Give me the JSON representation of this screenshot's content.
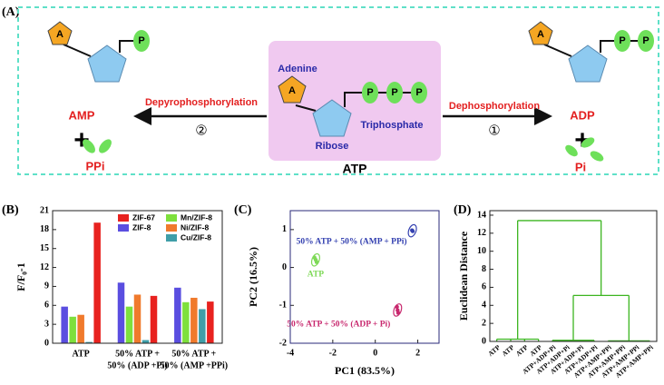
{
  "diagram": {
    "panel_label": "(A)",
    "adenine_symbol": "A",
    "phosphate_symbol": "P",
    "plus": "+",
    "amp": "AMP",
    "ppi": "PPi",
    "left_reaction": "Depyrophosphorylation",
    "left_step": "②",
    "adenine": "Adenine",
    "ribose": "Ribose",
    "triphosphate": "Triphosphate",
    "atp": "ATP",
    "right_reaction": "Dephosphorylation",
    "right_step": "①",
    "adp": "ADP",
    "pi": "Pi"
  },
  "chart_data": [
    {
      "type": "bar",
      "panel_label": "(B)",
      "y_label": "F/F₀-1",
      "categories": [
        [
          "ATP"
        ],
        [
          "50% ATP +",
          "50% (ADP +Pi)"
        ],
        [
          "50% ATP +",
          "50% (AMP +PPi)"
        ]
      ],
      "series": [
        {
          "name": "ZIF-8",
          "color": "#5a4ee0",
          "values": [
            5.8,
            9.6,
            8.8
          ]
        },
        {
          "name": "Mn/ZIF-8",
          "color": "#7ee03c",
          "values": [
            4.2,
            5.8,
            6.5
          ]
        },
        {
          "name": "Ni/ZIF-8",
          "color": "#f07a2c",
          "values": [
            4.5,
            7.7,
            7.2
          ]
        },
        {
          "name": "Cu/ZIF-8",
          "color": "#3f9ea8",
          "values": [
            0.2,
            0.5,
            5.4
          ]
        },
        {
          "name": "ZIF-67",
          "color": "#e8221f",
          "values": [
            19.1,
            7.5,
            6.6
          ]
        }
      ],
      "ylim": [
        0,
        21
      ],
      "yticks": [
        0,
        3,
        6,
        9,
        12,
        15,
        18,
        21
      ]
    },
    {
      "type": "scatter",
      "panel_label": "(C)",
      "x_label": "PC1 (83.5%)",
      "y_label": "PC2 (16.5%)",
      "series": [
        {
          "name": "ATP",
          "color": "#7ed957",
          "x": [
            -2.86,
            -2.8,
            -2.76
          ],
          "values": [
            0.26,
            0.2,
            0.14
          ]
        },
        {
          "name": "50% ATP + 50% (AMP + PPi)",
          "color": "#3340b0",
          "x": [
            1.73,
            1.76
          ],
          "values": [
            0.98,
            0.96
          ]
        },
        {
          "name": "50% ATP + 50% (ADP + Pi)",
          "color": "#c8286e",
          "x": [
            1.02,
            1.05,
            1.08
          ],
          "values": [
            -1.04,
            -1.13,
            -1.2
          ]
        }
      ],
      "xlim": [
        -4,
        3
      ],
      "ylim": [
        -2,
        1.5
      ],
      "xticks": [
        -4,
        -2,
        0,
        2
      ],
      "yticks": [
        -2,
        -1,
        0,
        1
      ]
    },
    {
      "type": "dendrogram",
      "panel_label": "(D)",
      "y_label": "Euclidean Distance",
      "color": "#3cb521",
      "categories": [
        "ATP",
        "ATP",
        "ATP",
        "ATP",
        "ATP+ADP+Pi",
        "ATP+ADP+Pi",
        "ATP+ADP+Pi",
        "ATP+ADP+Pi",
        "ATP+AMP+PPi",
        "ATP+AMP+PPi",
        "ATP+AMP+PPi",
        "ATP+AMP+PPi"
      ],
      "cluster_heights": [
        0.25,
        0.12,
        0.06
      ],
      "merge_heights": [
        5.1,
        13.4
      ],
      "ylim": [
        0,
        14.5
      ],
      "yticks": [
        0,
        2,
        4,
        6,
        8,
        10,
        12,
        14
      ]
    }
  ]
}
